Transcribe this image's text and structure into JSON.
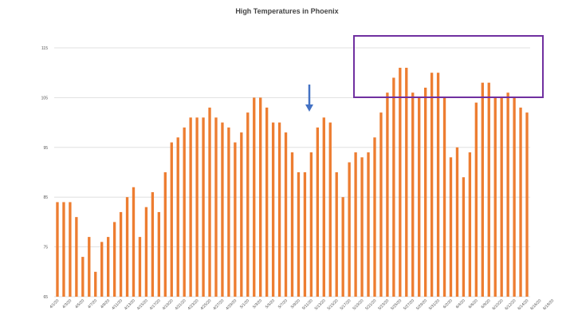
{
  "chart_data": {
    "type": "bar",
    "title": "High Temperatures in Phoenix",
    "xlabel": "",
    "ylabel": "",
    "ylim": [
      65,
      115
    ],
    "y_ticks": [
      65,
      75,
      85,
      95,
      105,
      115
    ],
    "grid": "horizontal",
    "bar_color": "#ED7D31",
    "x_tick_labels": [
      "4/1/20",
      "4/3/20",
      "4/5/20",
      "4/7/20",
      "4/9/20",
      "4/11/20",
      "4/13/20",
      "4/15/20",
      "4/17/20",
      "4/19/20",
      "4/21/20",
      "4/23/20",
      "4/25/20",
      "4/27/20",
      "4/29/20",
      "5/1/20",
      "5/3/20",
      "5/5/20",
      "5/7/20",
      "5/9/20",
      "5/11/20",
      "5/13/20",
      "5/15/20",
      "5/17/20",
      "5/19/20",
      "5/21/20",
      "5/23/20",
      "5/25/20",
      "5/27/20",
      "5/29/20",
      "5/31/20",
      "6/2/20",
      "6/4/20",
      "6/6/20",
      "6/8/20",
      "6/10/20",
      "6/12/20",
      "6/14/20",
      "6/16/20",
      "6/18/20"
    ],
    "values": [
      84,
      84,
      84,
      81,
      73,
      77,
      70,
      76,
      77,
      80,
      82,
      85,
      87,
      77,
      83,
      86,
      82,
      90,
      96,
      97,
      99,
      101,
      101,
      101,
      103,
      101,
      100,
      99,
      96,
      98,
      102,
      105,
      105,
      103,
      100,
      100,
      98,
      94,
      90,
      90,
      94,
      99,
      101,
      100,
      90,
      85,
      92,
      94,
      93,
      94,
      97,
      102,
      106,
      109,
      111,
      111,
      106,
      105,
      107,
      110,
      110,
      105,
      93,
      95,
      89,
      94,
      104,
      108,
      108,
      105,
      105,
      106,
      105,
      103,
      102
    ]
  },
  "annotations": {
    "arrow_color": "#4472C4",
    "highlight_box_color": "#7030A0"
  }
}
